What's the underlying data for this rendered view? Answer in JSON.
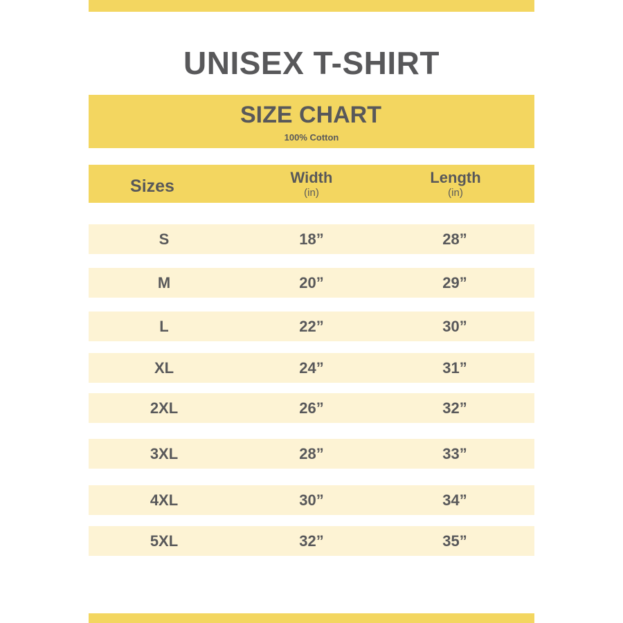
{
  "title": "UNISEX T-SHIRT",
  "banner": {
    "heading": "SIZE CHART",
    "material": "100% Cotton"
  },
  "colors": {
    "accent": "#f3d660",
    "row_fill": "#fdf3d4",
    "text": "#58585a"
  },
  "table": {
    "headers": [
      {
        "label": "Sizes",
        "unit": ""
      },
      {
        "label": "Width",
        "unit": "(in)"
      },
      {
        "label": "Length",
        "unit": "(in)"
      }
    ],
    "rows": [
      {
        "size": "S",
        "width": "18”",
        "length": "28”"
      },
      {
        "size": "M",
        "width": "20”",
        "length": "29”"
      },
      {
        "size": "L",
        "width": "22”",
        "length": "30”"
      },
      {
        "size": "XL",
        "width": "24”",
        "length": "31”"
      },
      {
        "size": "2XL",
        "width": "26”",
        "length": "32”"
      },
      {
        "size": "3XL",
        "width": "28”",
        "length": "33”"
      },
      {
        "size": "4XL",
        "width": "30”",
        "length": "34”"
      },
      {
        "size": "5XL",
        "width": "32”",
        "length": "35”"
      }
    ]
  }
}
